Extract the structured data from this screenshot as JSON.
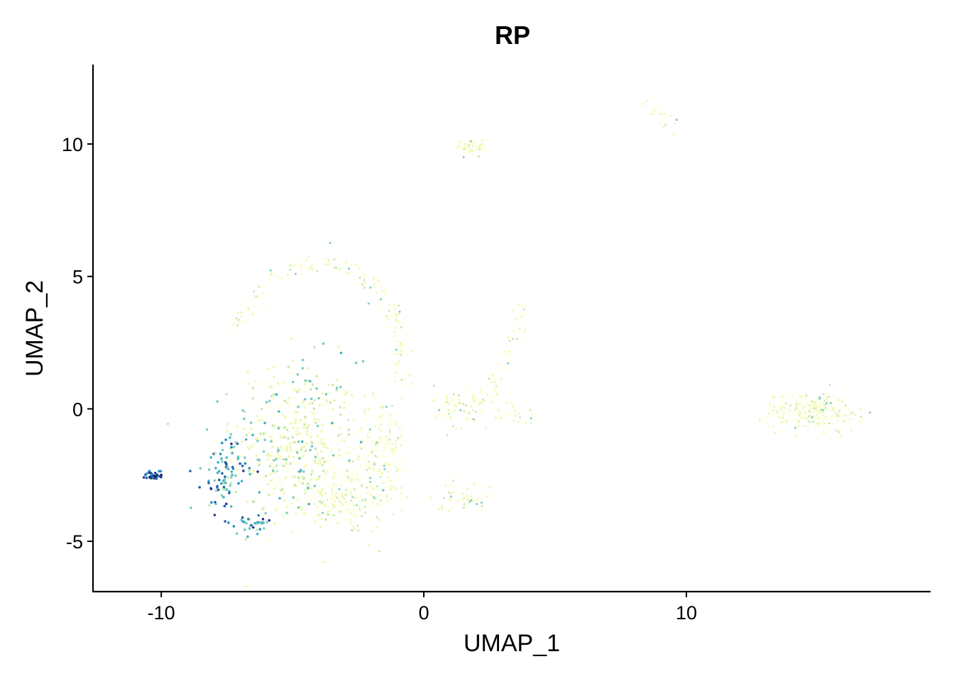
{
  "chart_data": {
    "type": "scatter",
    "title": "RP",
    "xlabel": "UMAP_1",
    "ylabel": "UMAP_2",
    "xlim": [
      -12.6,
      19.3
    ],
    "ylim": [
      -6.9,
      13.0
    ],
    "x_ticks": [
      {
        "value": -10,
        "label": "-10"
      },
      {
        "value": 0,
        "label": "0"
      },
      {
        "value": 10,
        "label": "10"
      }
    ],
    "y_ticks": [
      {
        "value": -5,
        "label": "-5"
      },
      {
        "value": 0,
        "label": "0"
      },
      {
        "value": 5,
        "label": "5"
      },
      {
        "value": 10,
        "label": "10"
      }
    ],
    "grid": false,
    "legend": "none",
    "color_scale": {
      "low": "#ffffd9",
      "mid": "#7fcdbb",
      "high": "#081d58",
      "stops": [
        "#ffffd9",
        "#edf8b1",
        "#c7e9b4",
        "#7fcdbb",
        "#41b6c4",
        "#1d91c0",
        "#225ea8",
        "#253494",
        "#081d58"
      ]
    },
    "clusters": [
      {
        "name": "main-left-cloud",
        "center": [
          -4.9,
          -1.3
        ],
        "spread": [
          2.0,
          2.6
        ],
        "n": 520,
        "expr": "mixed"
      },
      {
        "name": "main-lower-cloud",
        "center": [
          -3.0,
          -3.4
        ],
        "spread": [
          1.6,
          1.1
        ],
        "n": 260,
        "expr": "low"
      },
      {
        "name": "mid-column",
        "center": [
          -1.6,
          -1.5
        ],
        "spread": [
          0.9,
          1.6
        ],
        "n": 220,
        "expr": "low"
      },
      {
        "name": "arc-top",
        "path": [
          [
            -7.4,
            2.6
          ],
          [
            -6.8,
            3.8
          ],
          [
            -6.0,
            4.7
          ],
          [
            -5.0,
            5.3
          ],
          [
            -4.0,
            5.6
          ],
          [
            -3.0,
            5.4
          ],
          [
            -2.0,
            4.8
          ],
          [
            -1.4,
            4.0
          ],
          [
            -1.0,
            3.0
          ],
          [
            -0.8,
            2.0
          ],
          [
            -0.8,
            0.8
          ]
        ],
        "n": 220,
        "expr": "low"
      },
      {
        "name": "upper-islet",
        "center": [
          1.9,
          9.9
        ],
        "spread": [
          0.55,
          0.25
        ],
        "n": 70,
        "expr": "low"
      },
      {
        "name": "thin-streak-top",
        "path": [
          [
            8.6,
            11.5
          ],
          [
            9.5,
            10.6
          ]
        ],
        "n": 25,
        "expr": "low"
      },
      {
        "name": "right-arm",
        "path": [
          [
            2.5,
            0.6
          ],
          [
            3.1,
            1.5
          ],
          [
            3.6,
            3.0
          ],
          [
            3.9,
            4.0
          ]
        ],
        "n": 60,
        "expr": "low"
      },
      {
        "name": "right-arm-tail",
        "path": [
          [
            2.6,
            -0.2
          ],
          [
            3.4,
            -0.2
          ],
          [
            4.2,
            -0.3
          ]
        ],
        "n": 30,
        "expr": "low"
      },
      {
        "name": "mid-right-blob",
        "center": [
          1.6,
          0.1
        ],
        "spread": [
          1.0,
          0.7
        ],
        "n": 110,
        "expr": "low"
      },
      {
        "name": "small-lower-right-blob",
        "center": [
          1.6,
          -3.3
        ],
        "spread": [
          0.9,
          0.5
        ],
        "n": 70,
        "expr": "low"
      },
      {
        "name": "far-right-cluster",
        "center": [
          14.8,
          -0.1
        ],
        "spread": [
          1.6,
          0.6
        ],
        "n": 300,
        "expr": "low"
      },
      {
        "name": "high-expr-edge",
        "center": [
          -7.6,
          -2.5
        ],
        "spread": [
          0.7,
          1.2
        ],
        "n": 90,
        "expr": "high"
      },
      {
        "name": "high-expr-lower-edge",
        "center": [
          -6.5,
          -4.4
        ],
        "spread": [
          0.5,
          0.35
        ],
        "n": 35,
        "expr": "high"
      },
      {
        "name": "far-left-group",
        "center": [
          -10.3,
          -2.5
        ],
        "spread": [
          0.25,
          0.12
        ],
        "n": 28,
        "expr": "very-high"
      }
    ]
  }
}
